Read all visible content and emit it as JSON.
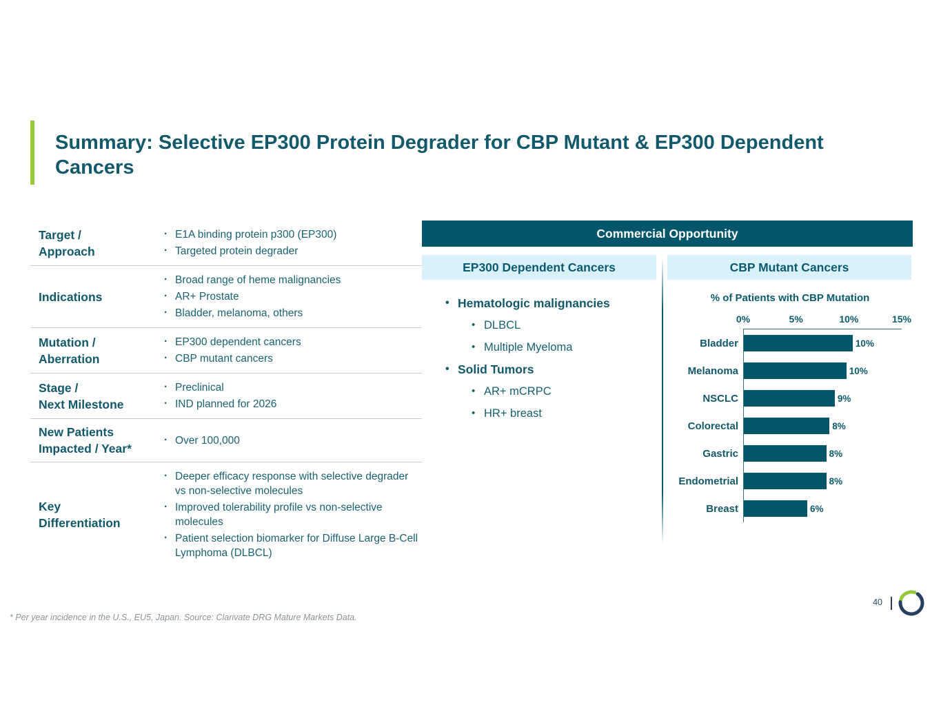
{
  "slide": {
    "title": "Summary: Selective EP300 Protein Degrader for CBP Mutant & EP300 Dependent Cancers",
    "footnote": "* Per year incidence in the U.S., EU5, Japan. Source: Clarivate DRG Mature Markets Data.",
    "page_number": "40",
    "accent_color": "#94C83D",
    "teal_dark": "#05566A",
    "light_blue": "#D9F1FB"
  },
  "profile_table": {
    "rows": [
      {
        "label_lines": [
          "Target /",
          "Approach"
        ],
        "bullets": [
          "E1A binding protein p300 (EP300)",
          "Targeted protein degrader"
        ]
      },
      {
        "label_lines": [
          "Indications"
        ],
        "bullets": [
          "Broad range of heme malignancies",
          "AR+ Prostate",
          "Bladder, melanoma, others"
        ]
      },
      {
        "label_lines": [
          "Mutation /",
          "Aberration"
        ],
        "bullets": [
          "EP300 dependent cancers",
          "CBP mutant cancers"
        ]
      },
      {
        "label_lines": [
          "Stage /",
          "Next Milestone"
        ],
        "bullets": [
          "Preclinical",
          "IND planned for 2026"
        ]
      },
      {
        "label_lines": [
          "New Patients",
          "Impacted / Year*"
        ],
        "bullets": [
          "Over 100,000"
        ]
      },
      {
        "label_lines": [
          "Key",
          "Differentiation"
        ],
        "bullets": [
          "Deeper efficacy response with selective degrader vs non-selective molecules",
          "Improved tolerability profile vs non-selective molecules",
          "Patient selection biomarker for Diffuse Large B-Cell Lymphoma (DLBCL)"
        ]
      }
    ]
  },
  "commercial": {
    "header": "Commercial Opportunity",
    "left_header": "EP300 Dependent Cancers",
    "right_header": "CBP Mutant Cancers",
    "left_items": [
      {
        "text": "Hematologic malignancies",
        "level": 1
      },
      {
        "text": "DLBCL",
        "level": 2
      },
      {
        "text": "Multiple Myeloma",
        "level": 2
      },
      {
        "text": "Solid Tumors",
        "level": 1
      },
      {
        "text": "AR+ mCRPC",
        "level": 2
      },
      {
        "text": "HR+ breast",
        "level": 2
      }
    ]
  },
  "chart_data": {
    "type": "bar",
    "orientation": "horizontal",
    "title": "% of Patients with CBP Mutation",
    "categories": [
      "Bladder",
      "Melanoma",
      "NSCLC",
      "Colorectal",
      "Gastric",
      "Endometrial",
      "Breast"
    ],
    "values": [
      10.3,
      9.7,
      8.6,
      8.1,
      7.8,
      7.8,
      6.0
    ],
    "value_labels": [
      "10%",
      "10%",
      "9%",
      "8%",
      "8%",
      "8%",
      "6%"
    ],
    "x_ticks": [
      "0%",
      "5%",
      "10%",
      "15%"
    ],
    "x_tick_values": [
      0,
      5,
      10,
      15
    ],
    "xlim": [
      0,
      15
    ],
    "grid": false,
    "legend": false,
    "bar_color": "#05566A"
  },
  "logo": {
    "green": "#94C83D",
    "navy": "#27405F"
  }
}
